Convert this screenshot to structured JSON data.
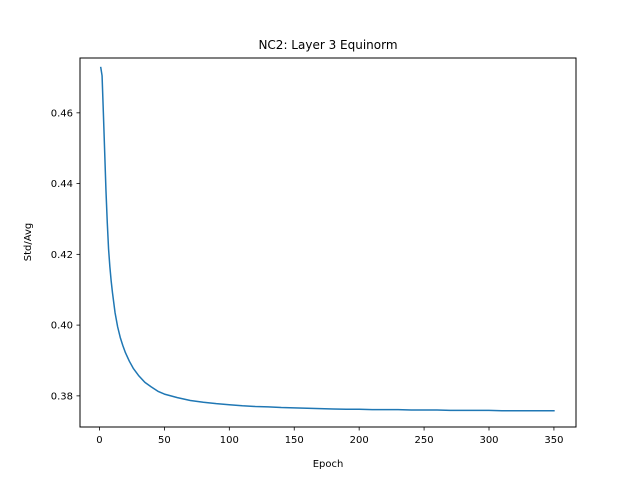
{
  "chart_data": {
    "type": "line",
    "title": "NC2: Layer 3 Equinorm",
    "xlabel": "Epoch",
    "ylabel": "Std/Avg",
    "xlim": [
      -15,
      367
    ],
    "ylim": [
      0.3712,
      0.4755
    ],
    "xticks": [
      0,
      50,
      100,
      150,
      200,
      250,
      300,
      350
    ],
    "yticks": [
      0.38,
      0.4,
      0.42,
      0.44,
      0.46
    ],
    "ytick_labels": [
      "0.38",
      "0.40",
      "0.42",
      "0.44",
      "0.46"
    ],
    "grid": false,
    "legend": null,
    "series": [
      {
        "color": "#1f77b4",
        "x": [
          1,
          2,
          3,
          4,
          5,
          6,
          7,
          8,
          9,
          10,
          12,
          14,
          16,
          18,
          20,
          23,
          26,
          30,
          35,
          40,
          45,
          50,
          60,
          70,
          80,
          90,
          100,
          110,
          120,
          130,
          140,
          150,
          160,
          170,
          180,
          190,
          200,
          210,
          220,
          230,
          240,
          250,
          260,
          270,
          280,
          290,
          300,
          310,
          320,
          330,
          340,
          350
        ],
        "y": [
          0.4728,
          0.4705,
          0.46,
          0.449,
          0.438,
          0.429,
          0.4215,
          0.4165,
          0.4125,
          0.4092,
          0.4035,
          0.3995,
          0.3965,
          0.3942,
          0.3922,
          0.3898,
          0.3878,
          0.3858,
          0.3838,
          0.3825,
          0.3813,
          0.3805,
          0.3795,
          0.3787,
          0.3782,
          0.3778,
          0.3775,
          0.3772,
          0.377,
          0.3769,
          0.3767,
          0.3766,
          0.3765,
          0.3764,
          0.3763,
          0.3762,
          0.3762,
          0.3761,
          0.3761,
          0.3761,
          0.376,
          0.376,
          0.376,
          0.3759,
          0.3759,
          0.3759,
          0.3759,
          0.3758,
          0.3758,
          0.3758,
          0.3758,
          0.3758
        ]
      }
    ]
  }
}
